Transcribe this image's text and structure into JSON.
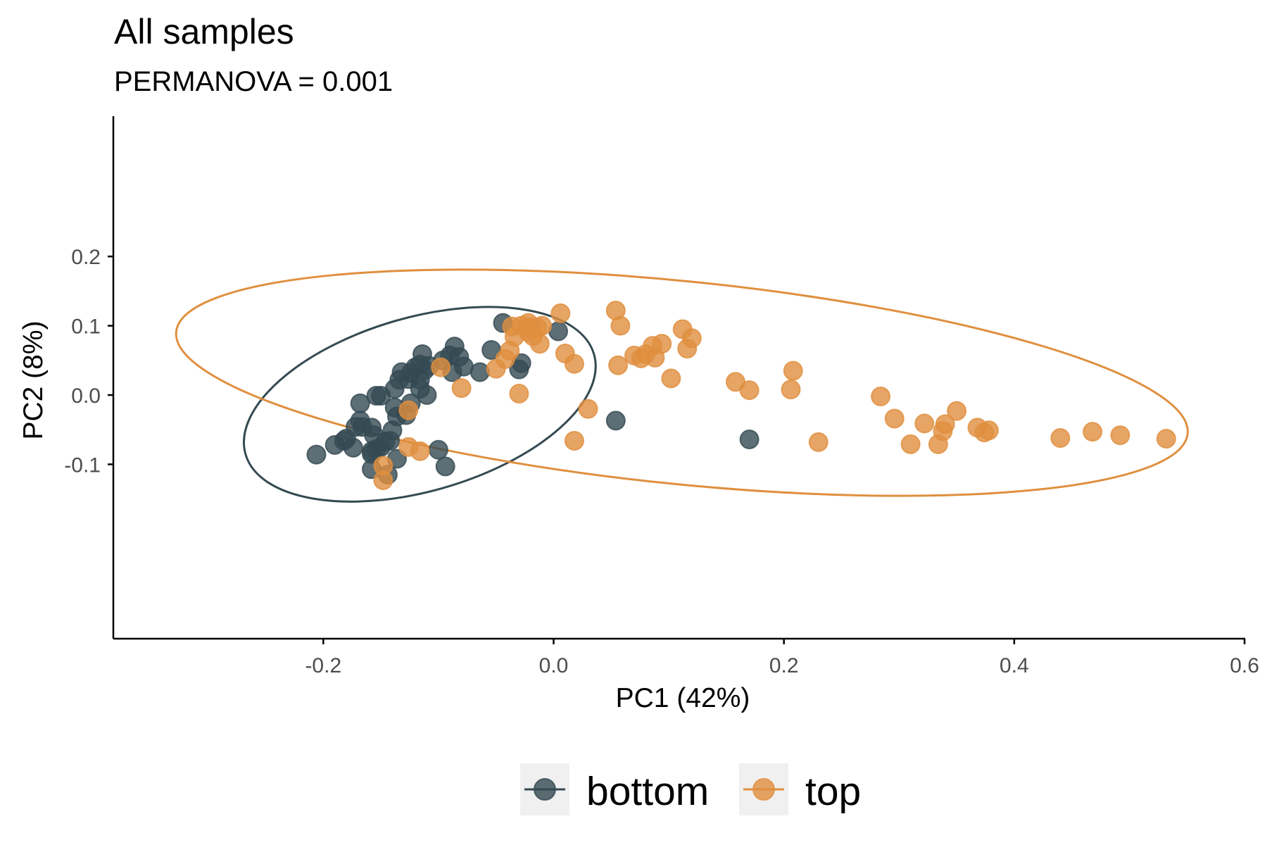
{
  "chart_data": {
    "type": "scatter",
    "title": "All samples",
    "subtitle": "PERMANOVA = 0.001",
    "xlabel": "PC1 (42%)",
    "ylabel": "PC2 (8%)",
    "xlim": [
      -0.3,
      0.6
    ],
    "ylim": [
      -0.17,
      0.2
    ],
    "x_ticks": [
      -0.2,
      0.0,
      0.2,
      0.4,
      0.6
    ],
    "x_tick_labels": [
      "-0.2",
      "0.0",
      "0.2",
      "0.4",
      "0.6"
    ],
    "y_ticks": [
      -0.1,
      0.0,
      0.1,
      0.2
    ],
    "y_tick_labels": [
      "-0.1",
      "0.0",
      "0.1",
      "0.2"
    ],
    "grid": false,
    "legend_position": "bottom",
    "ellipses": true,
    "series": [
      {
        "name": "bottom",
        "color": "#344a52",
        "points": [
          [
            -0.044,
            0.104
          ],
          [
            0.004,
            0.092
          ],
          [
            -0.086,
            0.07
          ],
          [
            -0.054,
            0.065
          ],
          [
            -0.114,
            0.059
          ],
          [
            -0.09,
            0.057
          ],
          [
            -0.082,
            0.055
          ],
          [
            -0.096,
            0.05
          ],
          [
            -0.028,
            0.046
          ],
          [
            -0.116,
            0.044
          ],
          [
            -0.12,
            0.04
          ],
          [
            -0.108,
            0.042
          ],
          [
            -0.078,
            0.041
          ],
          [
            -0.03,
            0.037
          ],
          [
            -0.112,
            0.036
          ],
          [
            -0.132,
            0.033
          ],
          [
            -0.124,
            0.032
          ],
          [
            -0.064,
            0.033
          ],
          [
            -0.088,
            0.033
          ],
          [
            -0.134,
            0.022
          ],
          [
            -0.126,
            0.023
          ],
          [
            -0.116,
            0.022
          ],
          [
            -0.138,
            0.009
          ],
          [
            -0.116,
            0.009
          ],
          [
            -0.11,
            0.0
          ],
          [
            -0.154,
            -0.001
          ],
          [
            -0.15,
            -0.001
          ],
          [
            -0.168,
            -0.012
          ],
          [
            -0.124,
            -0.012
          ],
          [
            -0.138,
            -0.018
          ],
          [
            -0.128,
            -0.029
          ],
          [
            -0.136,
            -0.031
          ],
          [
            -0.168,
            -0.037
          ],
          [
            -0.158,
            -0.047
          ],
          [
            -0.166,
            -0.046
          ],
          [
            -0.172,
            -0.046
          ],
          [
            -0.14,
            -0.051
          ],
          [
            -0.156,
            -0.058
          ],
          [
            0.054,
            -0.037
          ],
          [
            -0.18,
            -0.063
          ],
          [
            -0.182,
            -0.066
          ],
          [
            -0.146,
            -0.067
          ],
          [
            -0.142,
            -0.066
          ],
          [
            -0.19,
            -0.072
          ],
          [
            -0.174,
            -0.076
          ],
          [
            -0.15,
            -0.075
          ],
          [
            -0.154,
            -0.078
          ],
          [
            -0.158,
            -0.081
          ],
          [
            -0.1,
            -0.079
          ],
          [
            -0.206,
            -0.086
          ],
          [
            -0.136,
            -0.092
          ],
          [
            -0.158,
            -0.085
          ],
          [
            -0.094,
            -0.103
          ],
          [
            -0.158,
            -0.107
          ],
          [
            -0.144,
            -0.115
          ],
          [
            0.17,
            -0.064
          ]
        ]
      },
      {
        "name": "top",
        "color": "#e08f3f",
        "points": [
          [
            0.006,
            0.118
          ],
          [
            0.054,
            0.122
          ],
          [
            -0.036,
            0.099
          ],
          [
            -0.028,
            0.1
          ],
          [
            -0.022,
            0.104
          ],
          [
            -0.02,
            0.098
          ],
          [
            -0.01,
            0.1
          ],
          [
            -0.022,
            0.091
          ],
          [
            -0.014,
            0.097
          ],
          [
            0.058,
            0.1
          ],
          [
            0.112,
            0.095
          ],
          [
            -0.034,
            0.084
          ],
          [
            -0.018,
            0.085
          ],
          [
            -0.012,
            0.074
          ],
          [
            0.12,
            0.082
          ],
          [
            0.094,
            0.074
          ],
          [
            0.086,
            0.071
          ],
          [
            0.116,
            0.067
          ],
          [
            -0.038,
            0.064
          ],
          [
            0.01,
            0.06
          ],
          [
            0.07,
            0.057
          ],
          [
            0.08,
            0.059
          ],
          [
            0.076,
            0.053
          ],
          [
            0.088,
            0.054
          ],
          [
            -0.042,
            0.052
          ],
          [
            0.018,
            0.045
          ],
          [
            0.056,
            0.043
          ],
          [
            -0.098,
            0.04
          ],
          [
            -0.05,
            0.038
          ],
          [
            0.102,
            0.024
          ],
          [
            0.158,
            0.019
          ],
          [
            0.208,
            0.035
          ],
          [
            0.17,
            0.007
          ],
          [
            0.206,
            0.008
          ],
          [
            -0.08,
            0.01
          ],
          [
            -0.03,
            0.002
          ],
          [
            0.284,
            -0.002
          ],
          [
            -0.126,
            -0.022
          ],
          [
            0.03,
            -0.02
          ],
          [
            0.35,
            -0.023
          ],
          [
            0.296,
            -0.034
          ],
          [
            0.322,
            -0.041
          ],
          [
            0.34,
            -0.042
          ],
          [
            0.368,
            -0.047
          ],
          [
            0.338,
            -0.052
          ],
          [
            0.378,
            -0.051
          ],
          [
            0.374,
            -0.054
          ],
          [
            0.44,
            -0.062
          ],
          [
            0.468,
            -0.053
          ],
          [
            0.492,
            -0.058
          ],
          [
            0.532,
            -0.063
          ],
          [
            0.018,
            -0.066
          ],
          [
            0.23,
            -0.068
          ],
          [
            0.31,
            -0.071
          ],
          [
            0.334,
            -0.071
          ],
          [
            -0.126,
            -0.075
          ],
          [
            -0.116,
            -0.081
          ],
          [
            -0.148,
            -0.102
          ],
          [
            -0.148,
            -0.123
          ]
        ]
      }
    ]
  }
}
